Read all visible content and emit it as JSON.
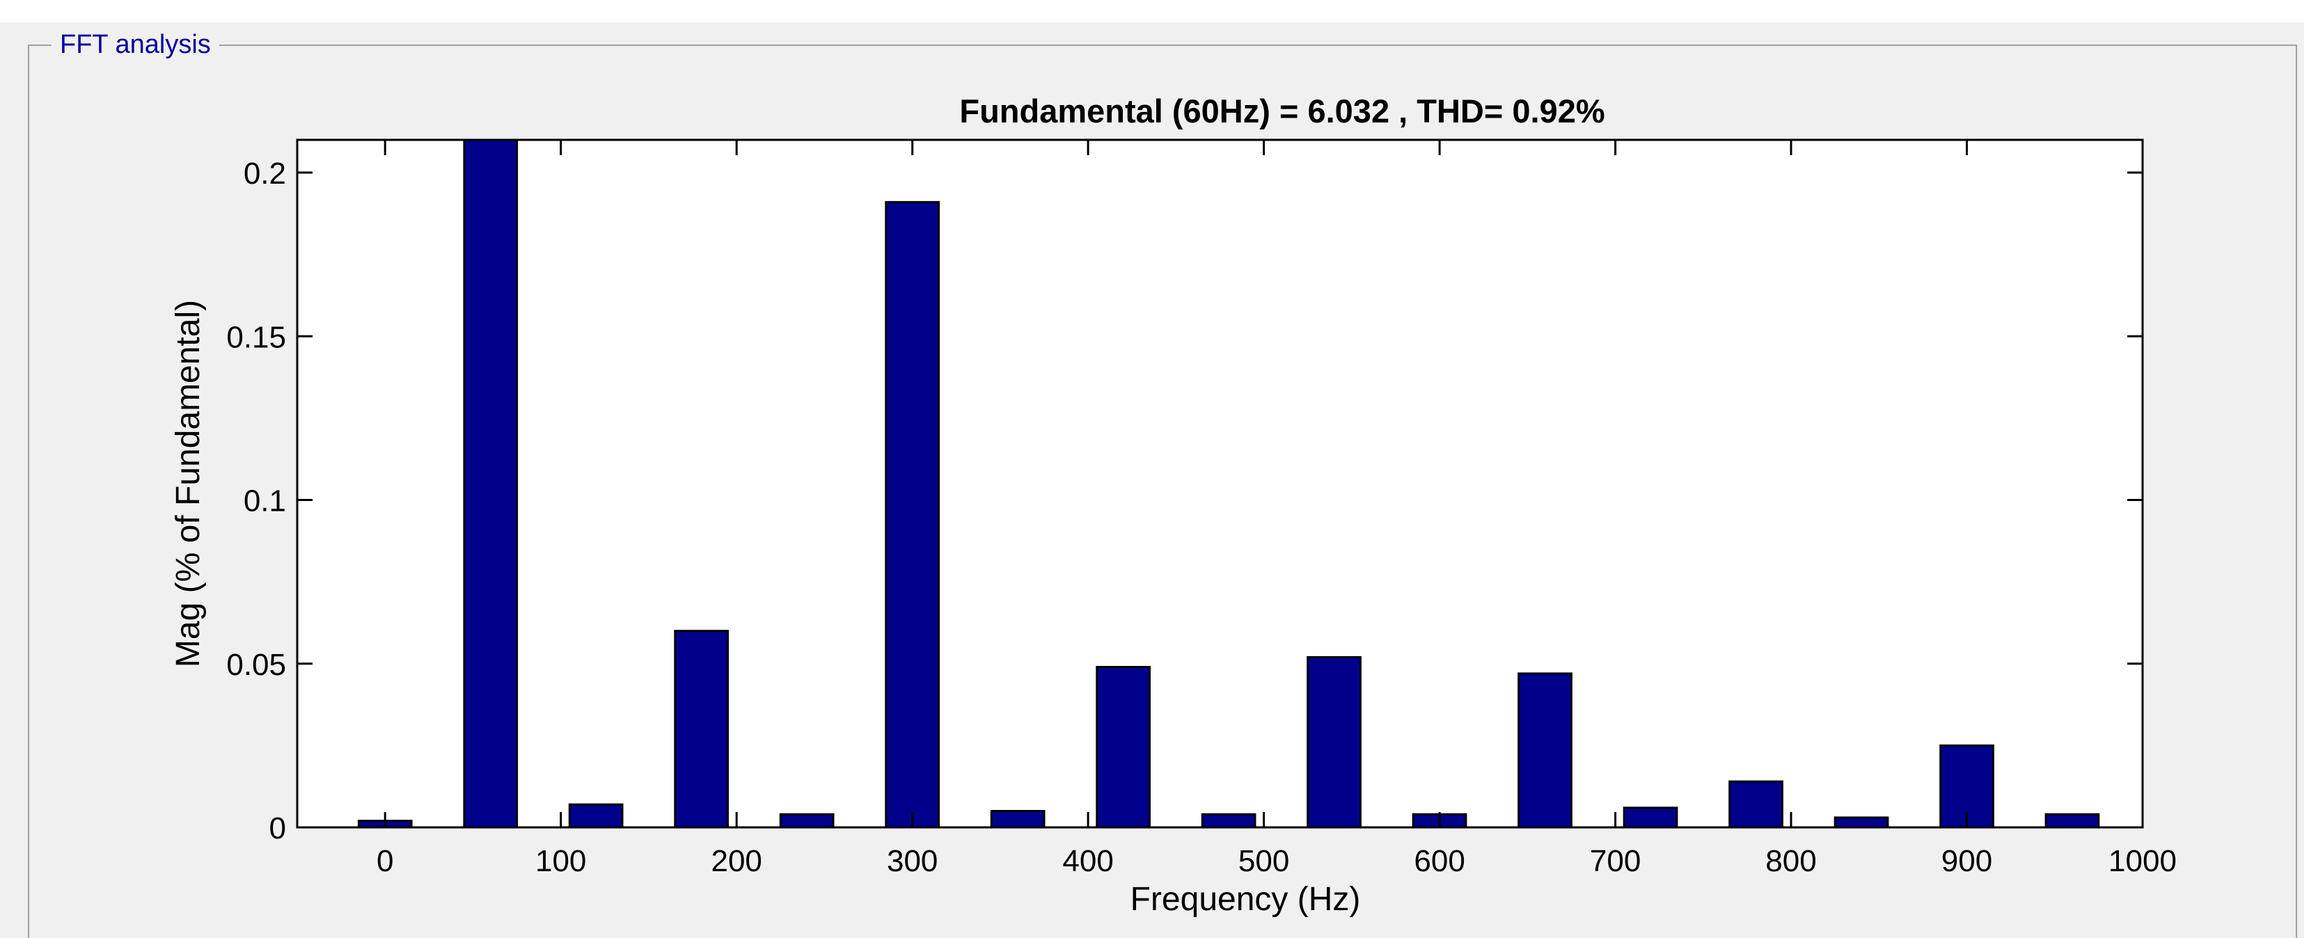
{
  "panel": {
    "title": "FFT analysis"
  },
  "colors": {
    "bar_fill": "#00008b",
    "bar_edge": "#000000",
    "panel_bg": "#f0f0f0",
    "title_text": "#0000a0"
  },
  "chart_data": {
    "type": "bar",
    "title": "Fundamental (60Hz) = 6.032 , THD= 0.92%",
    "xlabel": "Frequency (Hz)",
    "ylabel": "Mag (% of Fundamental)",
    "xlim": [
      -50,
      1000
    ],
    "ylim": [
      0,
      0.21
    ],
    "xticks": [
      0,
      100,
      200,
      300,
      400,
      500,
      600,
      700,
      800,
      900,
      1000
    ],
    "yticks": [
      0,
      0.05,
      0.1,
      0.15,
      0.2
    ],
    "grid": false,
    "bar_width_hz": 30,
    "x": [
      0,
      60,
      120,
      180,
      240,
      300,
      360,
      420,
      480,
      540,
      600,
      660,
      720,
      780,
      840,
      900,
      960
    ],
    "values": [
      0.002,
      0.21,
      0.007,
      0.06,
      0.004,
      0.191,
      0.005,
      0.049,
      0.004,
      0.052,
      0.004,
      0.047,
      0.006,
      0.014,
      0.003,
      0.025,
      0.004
    ]
  }
}
